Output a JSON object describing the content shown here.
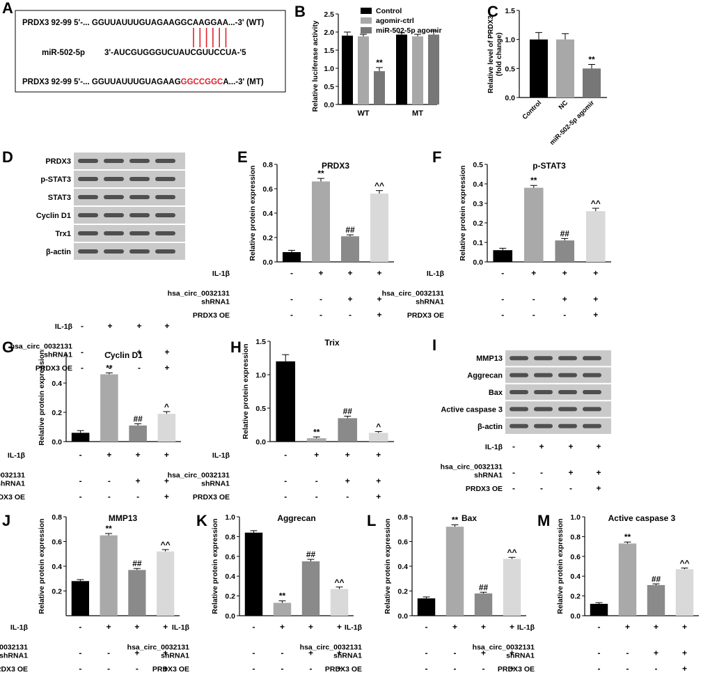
{
  "panels": {
    "A": "A",
    "B": "B",
    "C": "C",
    "D": "D",
    "E": "E",
    "F": "F",
    "G": "G",
    "H": "H",
    "I": "I",
    "J": "J",
    "K": "K",
    "L": "L",
    "M": "M"
  },
  "seq_box": {
    "rows": [
      {
        "label": "PRDX3  92-99  5'-... GGUUAUUUGUAGAAG",
        "highlight": "GCAAGG",
        "rest": "AA...-3' (WT)",
        "highlight_red": false
      },
      {
        "label": "miR-502-5p",
        "highlight": "",
        "rest": "3'-AUCGUGGGUCUAUCGUUCCUA-'5",
        "highlight_red": false
      },
      {
        "label": "PRDX3  92-99  5'-... GGUUAUUUGUAGAAG",
        "highlight": "GGCCGGC",
        "rest": "A...-3' (MT)",
        "highlight_red": true
      }
    ],
    "bond_count": 6,
    "red": "#e0202a"
  },
  "conditions": {
    "row1": "IL-1β",
    "row2a": "hsa_circ_0032131",
    "row2b": "shRNA1",
    "row3": "PRDX3 OE",
    "il1b": [
      "-",
      "+",
      "+",
      "+"
    ],
    "sh": [
      "-",
      "-",
      "+",
      "+"
    ],
    "oe": [
      "-",
      "-",
      "-",
      "+"
    ]
  },
  "blots": {
    "D": [
      "PRDX3",
      "p-STAT3",
      "STAT3",
      "Cyclin D1",
      "Trx1",
      "β-actin"
    ],
    "I": [
      "MMP13",
      "Aggrecan",
      "Bax",
      "Active caspase 3",
      "β-actin"
    ]
  },
  "chart_data": [
    {
      "id": "B",
      "type": "bar",
      "ylabel": "Relative luciferase activity",
      "ylim": [
        0,
        2.5
      ],
      "ticks": [
        0.0,
        0.5,
        1.0,
        1.5,
        2.0,
        2.5
      ],
      "categories": [
        "WT",
        "MT"
      ],
      "series": [
        {
          "name": "Control",
          "color": "#000000",
          "values": [
            1.9,
            1.93
          ],
          "err": [
            0.1,
            0.05
          ]
        },
        {
          "name": "agomir-ctrl",
          "color": "#a8a8a8",
          "values": [
            1.88,
            1.88
          ],
          "err": [
            0.06,
            0.06
          ]
        },
        {
          "name": "miR-502-5p agomir",
          "color": "#777777",
          "values": [
            0.92,
            1.93
          ],
          "err": [
            0.1,
            0.1
          ]
        }
      ],
      "annotations": [
        {
          "cat": 0,
          "series": 2,
          "text": "**"
        }
      ],
      "legend": "top-right"
    },
    {
      "id": "C",
      "type": "bar",
      "ylabel": "Relative level of PRDX3",
      "ylabel2": "(fold change)",
      "ylim": [
        0,
        1.5
      ],
      "ticks": [
        0.0,
        0.5,
        1.0,
        1.5
      ],
      "categories": [
        "Control",
        "NC",
        "miR-502-5p agomir"
      ],
      "values": [
        1.0,
        1.0,
        0.5
      ],
      "err": [
        0.12,
        0.1,
        0.07
      ],
      "colors": [
        "#000000",
        "#a8a8a8",
        "#777777"
      ],
      "annotations": [
        "",
        "",
        "**"
      ]
    },
    {
      "id": "E",
      "type": "bar",
      "title": "PRDX3",
      "ylabel": "Relative protein expression",
      "ylim": [
        0,
        0.8
      ],
      "ticks": [
        0.0,
        0.2,
        0.4,
        0.6,
        0.8
      ],
      "values": [
        0.08,
        0.66,
        0.21,
        0.56
      ],
      "err": [
        0.015,
        0.025,
        0.012,
        0.025
      ],
      "annotations": [
        "",
        "**",
        "##",
        "^^"
      ]
    },
    {
      "id": "F",
      "type": "bar",
      "title": "p-STAT3",
      "ylabel": "Relative protein expression",
      "ylim": [
        0,
        0.5
      ],
      "ticks": [
        0.0,
        0.1,
        0.2,
        0.3,
        0.4,
        0.5
      ],
      "values": [
        0.06,
        0.38,
        0.11,
        0.26
      ],
      "err": [
        0.01,
        0.012,
        0.01,
        0.015
      ],
      "annotations": [
        "",
        "**",
        "##",
        "^^"
      ]
    },
    {
      "id": "G",
      "type": "bar",
      "title": "Cyclin D1",
      "ylabel": "Relative protein expression",
      "ylim": [
        0,
        0.6
      ],
      "ticks": [
        0.0,
        0.2,
        0.4
      ],
      "values": [
        0.06,
        0.46,
        0.11,
        0.19
      ],
      "err": [
        0.015,
        0.01,
        0.012,
        0.015
      ],
      "annotations": [
        "",
        "**",
        "##",
        "^"
      ]
    },
    {
      "id": "H",
      "type": "bar",
      "title": "Trix",
      "ylabel": "Relative protein expression",
      "ylim": [
        0,
        1.5
      ],
      "ticks": [
        0.0,
        0.5,
        1.0,
        1.5
      ],
      "values": [
        1.2,
        0.05,
        0.35,
        0.13
      ],
      "err": [
        0.1,
        0.02,
        0.03,
        0.02
      ],
      "annotations": [
        "",
        "**",
        "##",
        "^"
      ]
    },
    {
      "id": "J",
      "type": "bar",
      "title": "MMP13",
      "ylabel": "Relative protein expression",
      "ylim": [
        0,
        0.8
      ],
      "ticks": [
        0.2,
        0.4,
        0.6,
        0.8
      ],
      "values": [
        0.28,
        0.65,
        0.37,
        0.52
      ],
      "err": [
        0.012,
        0.015,
        0.012,
        0.015
      ],
      "annotations": [
        "",
        "**",
        "##",
        "^^"
      ]
    },
    {
      "id": "K",
      "type": "bar",
      "title": "Aggrecan",
      "ylabel": "Relative protein expression",
      "ylim": [
        0,
        1.0
      ],
      "ticks": [
        0.0,
        0.2,
        0.4,
        0.6,
        0.8,
        1.0
      ],
      "values": [
        0.84,
        0.13,
        0.55,
        0.27
      ],
      "err": [
        0.02,
        0.02,
        0.02,
        0.02
      ],
      "annotations": [
        "",
        "**",
        "##",
        "^^"
      ]
    },
    {
      "id": "L",
      "type": "bar",
      "title": "Bax",
      "ylabel": "Relative protein expression",
      "ylim": [
        0,
        0.8
      ],
      "ticks": [
        0.0,
        0.2,
        0.4,
        0.6,
        0.8
      ],
      "values": [
        0.14,
        0.72,
        0.18,
        0.46
      ],
      "err": [
        0.012,
        0.015,
        0.01,
        0.012
      ],
      "annotations": [
        "",
        "**",
        "##",
        "^^"
      ]
    },
    {
      "id": "M",
      "type": "bar",
      "title": "Active caspase 3",
      "ylabel": "Relative protein expression",
      "ylim": [
        0,
        1.0
      ],
      "ticks": [
        0.0,
        0.2,
        0.4,
        0.6,
        0.8,
        1.0
      ],
      "values": [
        0.12,
        0.73,
        0.31,
        0.47
      ],
      "err": [
        0.012,
        0.015,
        0.012,
        0.012
      ],
      "annotations": [
        "",
        "**",
        "##",
        "^^"
      ]
    }
  ],
  "group_colors": [
    "#000000",
    "#a9a9a9",
    "#8a8a8a",
    "#d9d9d9"
  ]
}
